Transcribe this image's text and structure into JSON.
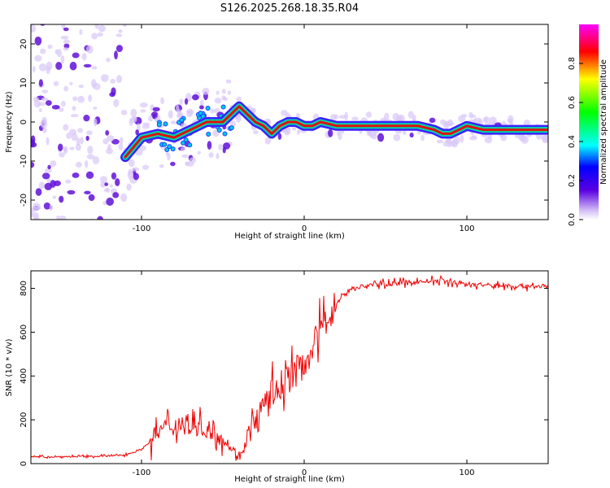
{
  "title": "S126.2025.268.18.35.R04",
  "colors": {
    "signal": "#f00000",
    "blob_light": "#d8c8f8",
    "blob_dark": "#6010d8",
    "frame": "#000000"
  },
  "chart_data": [
    {
      "type": "heatmap",
      "title": "S126.2025.268.18.35.R04",
      "xlabel": "Height of straight line (km)",
      "ylabel": "Frequency (Hz)",
      "xlim": [
        -168,
        150
      ],
      "ylim": [
        -25,
        25
      ],
      "xticks": [
        -100,
        0,
        100
      ],
      "yticks": [
        -20,
        -10,
        0,
        10,
        20
      ],
      "colorbar": {
        "label": "Normalized spectral amplitude",
        "range": [
          0,
          1
        ],
        "ticks": [
          0.0,
          0.2,
          0.4,
          0.6,
          0.8
        ]
      },
      "ridge": {
        "x": [
          -110,
          -100,
          -90,
          -80,
          -70,
          -60,
          -50,
          -45,
          -40,
          -35,
          -30,
          -25,
          -20,
          -15,
          -10,
          -5,
          0,
          5,
          10,
          20,
          40,
          60,
          70,
          80,
          85,
          90,
          100,
          110,
          150
        ],
        "y": [
          -9,
          -4,
          -3,
          -4,
          -2,
          0,
          0,
          2,
          4,
          2,
          0,
          -1,
          -3,
          -1,
          0,
          0,
          -1,
          -1,
          0,
          -1,
          -1,
          -1,
          -1,
          -2,
          -3,
          -3,
          -1,
          -2,
          -2
        ]
      }
    },
    {
      "type": "line",
      "xlabel": "Height of straight line (km)",
      "ylabel": "SNR (10 * v/v)",
      "xlim": [
        -168,
        150
      ],
      "ylim": [
        0,
        880
      ],
      "xticks": [
        -100,
        0,
        100
      ],
      "yticks": [
        0,
        200,
        400,
        600,
        800
      ],
      "series": [
        {
          "name": "SNR",
          "x": [
            -168,
            -140,
            -120,
            -110,
            -100,
            -95,
            -90,
            -85,
            -80,
            -75,
            -70,
            -65,
            -60,
            -55,
            -50,
            -45,
            -40,
            -38,
            -35,
            -30,
            -25,
            -20,
            -15,
            -10,
            -5,
            0,
            5,
            10,
            15,
            20,
            25,
            30,
            40,
            50,
            60,
            70,
            80,
            90,
            100,
            110,
            120,
            130,
            140,
            150
          ],
          "y": [
            30,
            32,
            35,
            40,
            65,
            100,
            140,
            170,
            175,
            170,
            165,
            170,
            160,
            150,
            110,
            70,
            40,
            60,
            110,
            190,
            250,
            300,
            350,
            390,
            420,
            460,
            520,
            600,
            680,
            730,
            780,
            800,
            815,
            820,
            825,
            830,
            835,
            830,
            820,
            815,
            812,
            810,
            810,
            810
          ]
        }
      ]
    }
  ]
}
